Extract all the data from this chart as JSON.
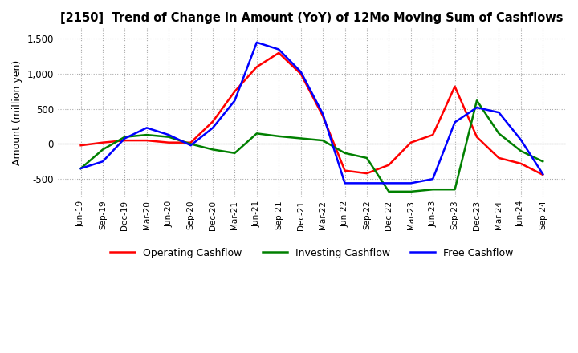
{
  "title": "[2150]  Trend of Change in Amount (YoY) of 12Mo Moving Sum of Cashflows",
  "ylabel": "Amount (million yen)",
  "ylim": [
    -750,
    1650
  ],
  "yticks": [
    -500,
    0,
    500,
    1000,
    1500
  ],
  "background_color": "#ffffff",
  "grid_color": "#aaaaaa",
  "x_labels": [
    "Jun-19",
    "Sep-19",
    "Dec-19",
    "Mar-20",
    "Jun-20",
    "Sep-20",
    "Dec-20",
    "Mar-21",
    "Jun-21",
    "Sep-21",
    "Dec-21",
    "Mar-22",
    "Jun-22",
    "Sep-22",
    "Dec-22",
    "Mar-23",
    "Jun-23",
    "Sep-23",
    "Dec-23",
    "Mar-24",
    "Jun-24",
    "Sep-24"
  ],
  "operating_cashflow": [
    -20,
    20,
    50,
    50,
    20,
    20,
    320,
    750,
    1100,
    1300,
    1000,
    400,
    -380,
    -420,
    -300,
    20,
    130,
    820,
    100,
    -200,
    -280,
    -440
  ],
  "investing_cashflow": [
    -350,
    -80,
    100,
    130,
    100,
    0,
    -80,
    -130,
    150,
    110,
    80,
    50,
    -130,
    -200,
    -680,
    -680,
    -650,
    -650,
    620,
    150,
    -100,
    -250
  ],
  "free_cashflow": [
    -350,
    -250,
    80,
    230,
    130,
    -20,
    230,
    620,
    1450,
    1350,
    1030,
    430,
    -560,
    -560,
    -560,
    -560,
    -500,
    310,
    520,
    450,
    60,
    -430
  ],
  "operating_color": "#ff0000",
  "investing_color": "#008000",
  "free_color": "#0000ff",
  "line_width": 1.8
}
